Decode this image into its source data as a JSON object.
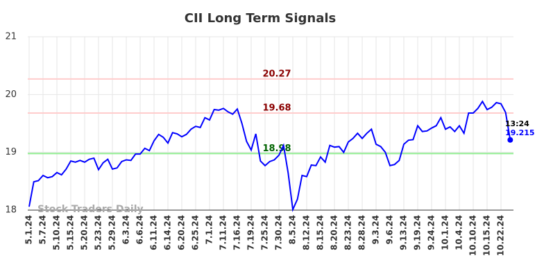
{
  "chart_data": {
    "type": "line",
    "title": "CII Long Term Signals",
    "categories": [
      "5.1.24",
      null,
      null,
      "5.7.24",
      null,
      null,
      "5.10.24",
      null,
      null,
      "5.15.24",
      null,
      null,
      "5.20.24",
      null,
      null,
      "5.23.24",
      null,
      null,
      "5.29.24",
      null,
      null,
      "6.3.24",
      null,
      null,
      "6.6.24",
      null,
      null,
      "6.11.24",
      null,
      null,
      "6.14.24",
      null,
      null,
      "6.20.24",
      null,
      null,
      "6.25.24",
      null,
      null,
      "7.1.24",
      null,
      null,
      "7.11.24",
      null,
      null,
      "7.16.24",
      null,
      null,
      "7.19.24",
      null,
      null,
      "7.25.24",
      null,
      null,
      "7.30.24",
      null,
      null,
      "8.5.24",
      null,
      null,
      "8.12.24",
      null,
      null,
      "8.15.24",
      null,
      null,
      "8.20.24",
      null,
      null,
      "8.23.24",
      null,
      null,
      "8.28.24",
      null,
      null,
      "9.3.24",
      null,
      null,
      "9.6.24",
      null,
      null,
      "9.13.24",
      null,
      null,
      "9.19.24",
      null,
      null,
      "9.24.24",
      null,
      null,
      "10.1.24",
      null,
      null,
      "10.4.24",
      null,
      null,
      "10.10.24",
      null,
      null,
      "10.15.24",
      null,
      null,
      "10.22.24",
      null,
      null
    ],
    "series": [
      {
        "color": "#0000ff",
        "values": [
          18.06,
          18.49,
          18.51,
          18.6,
          18.56,
          18.58,
          18.65,
          18.61,
          18.71,
          18.85,
          18.83,
          18.86,
          18.83,
          18.88,
          18.9,
          18.7,
          18.82,
          18.88,
          18.71,
          18.73,
          18.84,
          18.87,
          18.86,
          18.97,
          18.97,
          19.07,
          19.03,
          19.2,
          19.31,
          19.26,
          19.16,
          19.34,
          19.32,
          19.27,
          19.31,
          19.4,
          19.45,
          19.43,
          19.6,
          19.56,
          19.74,
          19.73,
          19.76,
          19.7,
          19.66,
          19.75,
          19.5,
          19.19,
          19.04,
          19.32,
          18.85,
          18.77,
          18.84,
          18.87,
          18.95,
          19.12,
          18.64,
          18.01,
          18.19,
          18.6,
          18.58,
          18.78,
          18.77,
          18.92,
          18.83,
          19.12,
          19.09,
          19.1,
          19.0,
          19.18,
          19.24,
          19.33,
          19.24,
          19.33,
          19.4,
          19.14,
          19.1,
          19.0,
          18.77,
          18.79,
          18.86,
          19.14,
          19.21,
          19.22,
          19.46,
          19.36,
          19.37,
          19.42,
          19.46,
          19.6,
          19.4,
          19.44,
          19.36,
          19.46,
          19.33,
          19.68,
          19.68,
          19.76,
          19.88,
          19.74,
          19.78,
          19.86,
          19.84,
          19.69,
          19.215
        ]
      }
    ],
    "ylim": [
      18,
      21
    ],
    "yticks": [
      18,
      19,
      20,
      21
    ],
    "grid": true,
    "hlines": [
      {
        "value": 20.27,
        "color": "#ffcccc",
        "label_color": "#8b0000"
      },
      {
        "value": 19.68,
        "color": "#ffcccc",
        "label_color": "#8b0000"
      },
      {
        "value": 18.98,
        "color": "#90ee90",
        "label_color": "#006400"
      }
    ],
    "last_time": "13:24",
    "watermark": "Stock Traders Daily"
  }
}
